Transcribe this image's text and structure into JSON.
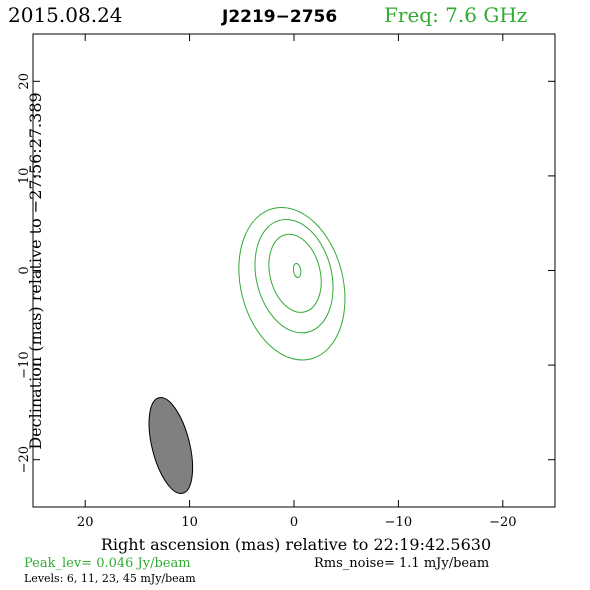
{
  "header": {
    "date": "2015.08.24",
    "source": "J2219−2756",
    "freq": "Freq: 7.6 GHz"
  },
  "footer": {
    "peak": "Peak_lev=  0.046 Jy/beam",
    "rms": "Rms_noise=  1.1 mJy/beam",
    "levels": "Levels:  6,  11,  23,  45 mJy/beam"
  },
  "colors": {
    "contour": "#33aa33",
    "header_green": "#33aa33",
    "beam_fill": "#808080",
    "axis": "#000000"
  },
  "chart_data": {
    "type": "contour",
    "xlabel": "Right ascension (mas) relative to 22:19:42.5630",
    "ylabel": "Declination (mas) relative to −27:56:27.389",
    "xlim": [
      25,
      -25
    ],
    "ylim": [
      -25,
      25
    ],
    "xticks": [
      20,
      10,
      0,
      -10,
      -20
    ],
    "xtick_labels": [
      "20",
      "10",
      "0",
      "−10",
      "−20"
    ],
    "yticks": [
      20,
      10,
      0,
      -10,
      -20
    ],
    "ytick_labels": [
      "20",
      "10",
      "0",
      "−10",
      "−20"
    ],
    "contour_levels_mJy": [
      6,
      11,
      23,
      45
    ],
    "contours": [
      {
        "level": 6,
        "cx": 0.2,
        "cy": -1.4,
        "a": 4.9,
        "b": 8.2,
        "angle": -14
      },
      {
        "level": 11,
        "cx": 0.0,
        "cy": -0.6,
        "a": 3.6,
        "b": 6.1,
        "angle": -14
      },
      {
        "level": 23,
        "cx": -0.1,
        "cy": -0.3,
        "a": 2.4,
        "b": 4.2,
        "angle": -14
      },
      {
        "level": 45,
        "cx": -0.3,
        "cy": 0.0,
        "a": 0.35,
        "b": 0.75,
        "angle": -8
      }
    ],
    "beam": {
      "cx": 11.8,
      "cy": -18.5,
      "a": 1.8,
      "b": 5.2,
      "angle": -14
    }
  }
}
